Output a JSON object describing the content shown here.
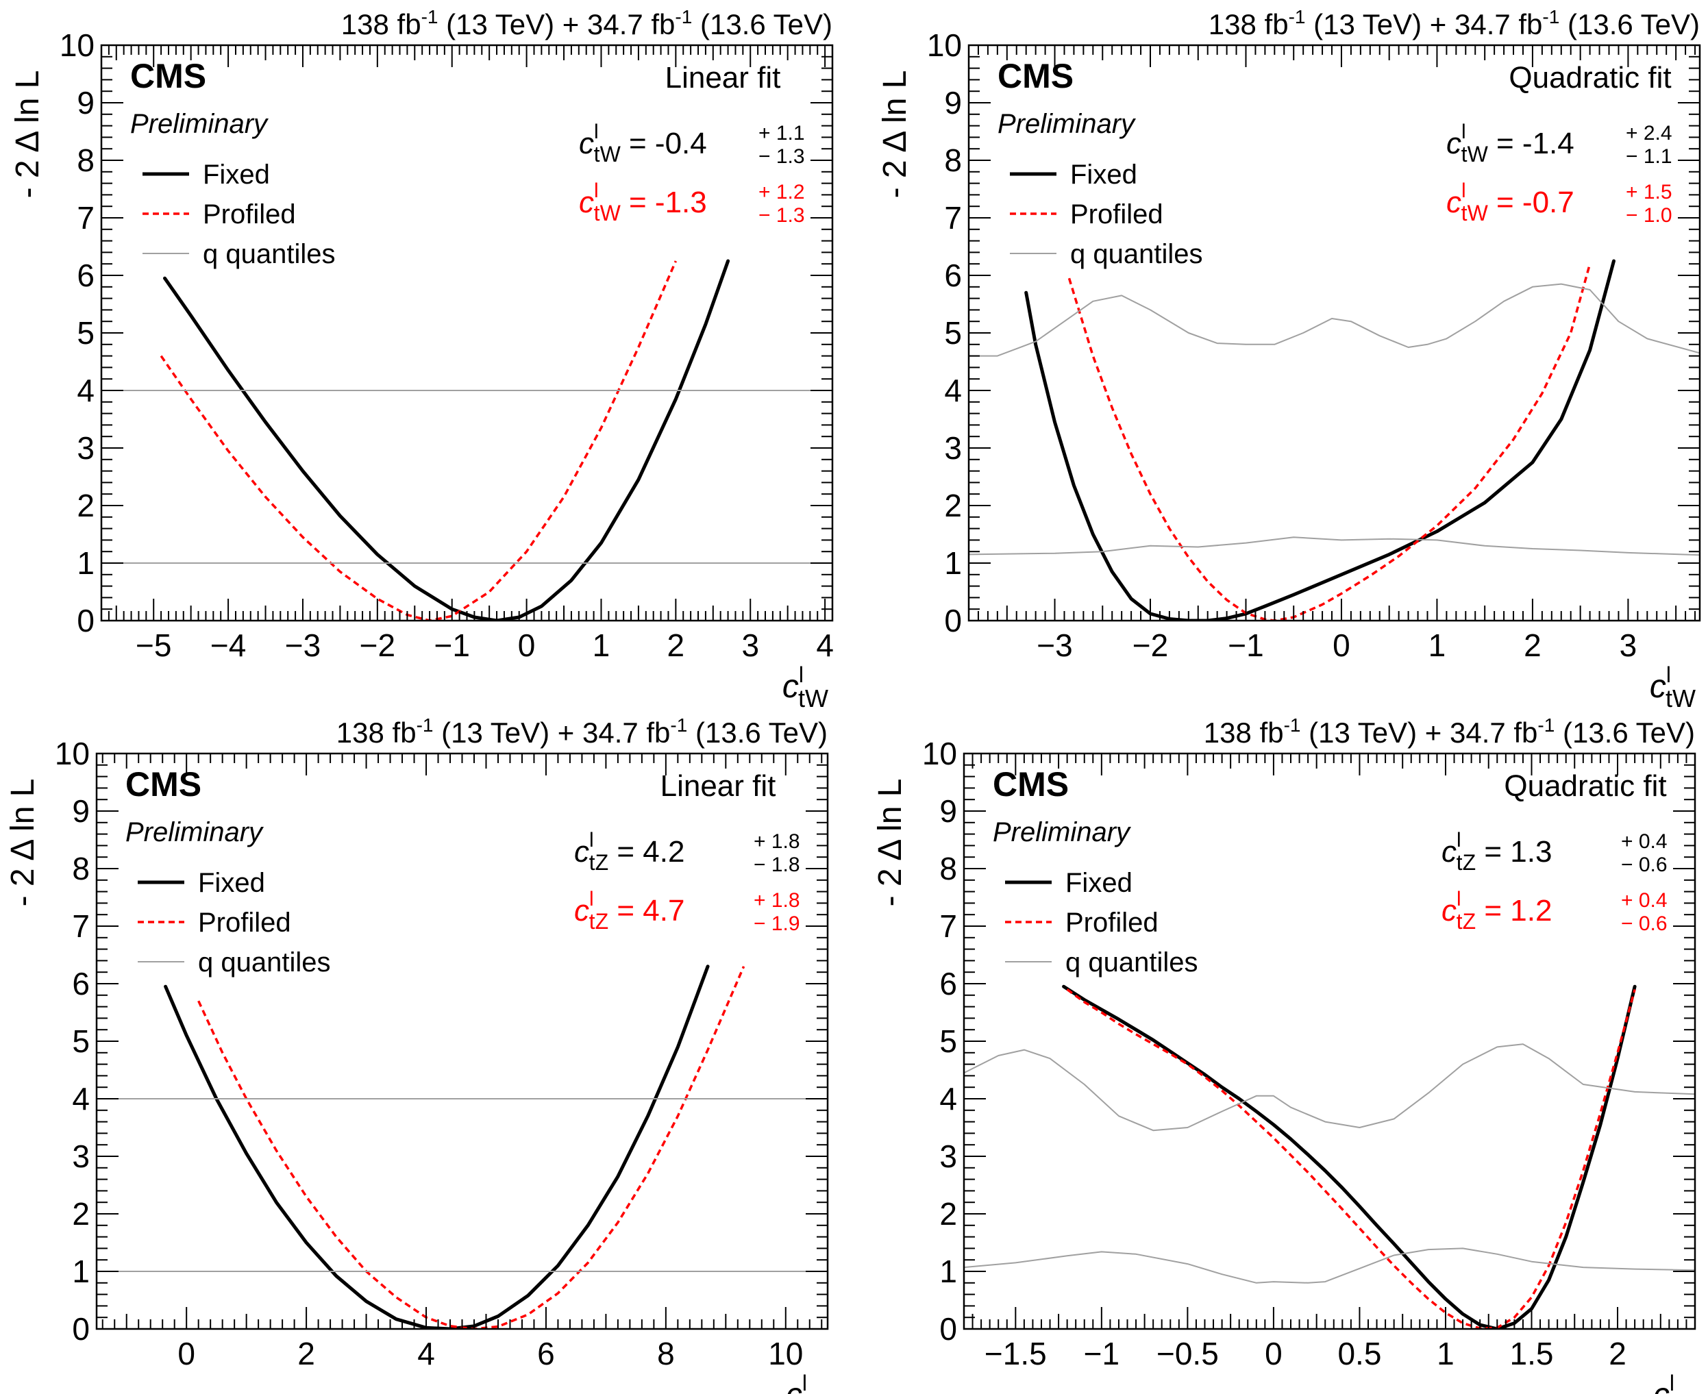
{
  "chart_data": [
    {
      "type": "line",
      "id": "ctw-linear",
      "top_label": {
        "lumi1": "138 fb",
        "exp1": "-1",
        "energy1": " (13 TeV) + 34.7 fb",
        "exp2": "-1",
        "energy2": " (13.6 TeV)"
      },
      "cms": "CMS",
      "preliminary": "Preliminary",
      "fit_title": "Linear fit",
      "ylabel": "- 2 Δ ln L",
      "xlabel": {
        "base": "c",
        "sup": "l",
        "sub": "tW"
      },
      "xlim": [
        -5.7,
        4.1
      ],
      "ylim": [
        0,
        10
      ],
      "xticks": [
        -5,
        -4,
        -3,
        -2,
        -1,
        0,
        1,
        2,
        3,
        4
      ],
      "xtick_labels": [
        "−5",
        "−4",
        "−3",
        "−2",
        "−1",
        "0",
        "1",
        "2",
        "3",
        "4"
      ],
      "yticks": [
        0,
        1,
        2,
        3,
        4,
        5,
        6,
        7,
        8,
        9,
        10
      ],
      "ytick_labels": [
        "0",
        "1",
        "2",
        "3",
        "4",
        "5",
        "6",
        "7",
        "8",
        "9",
        "10"
      ],
      "legend": [
        {
          "label": "Fixed",
          "style": "fixed"
        },
        {
          "label": "Profiled",
          "style": "profiled"
        },
        {
          "label": "q quantiles",
          "style": "quantile"
        }
      ],
      "results": [
        {
          "var": "c",
          "sup": "l",
          "sub": "tW",
          "text": " = -0.4",
          "up": "+ 1.1",
          "down": "− 1.3",
          "color": "#000000"
        },
        {
          "var": "c",
          "sup": "l",
          "sub": "tW",
          "text": " = -1.3",
          "up": "+ 1.2",
          "down": "− 1.3",
          "color": "#ff0000"
        }
      ],
      "series": [
        {
          "name": "Fixed",
          "color": "#000000",
          "x": [
            -4.85,
            -4.5,
            -4.0,
            -3.5,
            -3.0,
            -2.5,
            -2.0,
            -1.5,
            -1.0,
            -0.7,
            -0.4,
            -0.1,
            0.2,
            0.6,
            1.0,
            1.5,
            2.0,
            2.4,
            2.7
          ],
          "y": [
            5.95,
            5.3,
            4.35,
            3.45,
            2.6,
            1.82,
            1.15,
            0.6,
            0.2,
            0.06,
            0.0,
            0.06,
            0.25,
            0.7,
            1.35,
            2.45,
            3.85,
            5.15,
            6.25
          ]
        },
        {
          "name": "Profiled",
          "color": "#ff0000",
          "x": [
            -4.9,
            -4.5,
            -4.0,
            -3.5,
            -3.0,
            -2.5,
            -2.0,
            -1.6,
            -1.3,
            -1.0,
            -0.5,
            0.0,
            0.5,
            1.0,
            1.5,
            2.0
          ],
          "y": [
            4.6,
            3.85,
            2.95,
            2.15,
            1.45,
            0.85,
            0.38,
            0.1,
            0.0,
            0.08,
            0.5,
            1.2,
            2.15,
            3.35,
            4.75,
            6.25
          ]
        },
        {
          "name": "q quantile 1",
          "color": "#a0a0a0",
          "x": [
            -5.7,
            4.1
          ],
          "y": [
            1.0,
            1.0
          ]
        },
        {
          "name": "q quantile 2",
          "color": "#a0a0a0",
          "x": [
            -5.7,
            4.1
          ],
          "y": [
            4.0,
            4.0
          ]
        }
      ]
    },
    {
      "type": "line",
      "id": "ctw-quadratic",
      "top_label": {
        "lumi1": "138 fb",
        "exp1": "-1",
        "energy1": " (13 TeV) + 34.7 fb",
        "exp2": "-1",
        "energy2": " (13.6 TeV)"
      },
      "cms": "CMS",
      "preliminary": "Preliminary",
      "fit_title": "Quadratic fit",
      "ylabel": "- 2 Δ ln L",
      "xlabel": {
        "base": "c",
        "sup": "l",
        "sub": "tW"
      },
      "xlim": [
        -3.9,
        3.75
      ],
      "ylim": [
        0,
        10
      ],
      "xticks": [
        -3,
        -2,
        -1,
        0,
        1,
        2,
        3
      ],
      "xtick_labels": [
        "−3",
        "−2",
        "−1",
        "0",
        "1",
        "2",
        "3"
      ],
      "yticks": [
        0,
        1,
        2,
        3,
        4,
        5,
        6,
        7,
        8,
        9,
        10
      ],
      "ytick_labels": [
        "0",
        "1",
        "2",
        "3",
        "4",
        "5",
        "6",
        "7",
        "8",
        "9",
        "10"
      ],
      "legend": [
        {
          "label": "Fixed",
          "style": "fixed"
        },
        {
          "label": "Profiled",
          "style": "profiled"
        },
        {
          "label": "q quantiles",
          "style": "quantile"
        }
      ],
      "results": [
        {
          "var": "c",
          "sup": "l",
          "sub": "tW",
          "text": " = -1.4",
          "up": "+ 2.4",
          "down": "− 1.1",
          "color": "#000000"
        },
        {
          "var": "c",
          "sup": "l",
          "sub": "tW",
          "text": " = -0.7",
          "up": "+ 1.5",
          "down": "− 1.0",
          "color": "#ff0000"
        }
      ],
      "series": [
        {
          "name": "Fixed",
          "color": "#000000",
          "x": [
            -3.3,
            -3.2,
            -3.0,
            -2.8,
            -2.6,
            -2.4,
            -2.2,
            -2.0,
            -1.8,
            -1.6,
            -1.4,
            -1.2,
            -1.0,
            -0.8,
            -0.5,
            0.0,
            0.5,
            1.0,
            1.5,
            2.0,
            2.3,
            2.6,
            2.85
          ],
          "y": [
            5.7,
            4.8,
            3.45,
            2.35,
            1.5,
            0.85,
            0.38,
            0.12,
            0.03,
            0.0,
            0.0,
            0.04,
            0.12,
            0.25,
            0.45,
            0.8,
            1.15,
            1.55,
            2.05,
            2.75,
            3.5,
            4.7,
            6.25
          ]
        },
        {
          "name": "Profiled",
          "color": "#ff0000",
          "x": [
            -2.85,
            -2.6,
            -2.4,
            -2.2,
            -2.0,
            -1.8,
            -1.6,
            -1.4,
            -1.2,
            -1.0,
            -0.8,
            -0.7,
            -0.5,
            -0.2,
            0.0,
            0.3,
            0.6,
            1.0,
            1.4,
            1.8,
            2.1,
            2.4,
            2.6
          ],
          "y": [
            5.95,
            4.6,
            3.7,
            2.9,
            2.2,
            1.6,
            1.1,
            0.68,
            0.36,
            0.13,
            0.02,
            0.0,
            0.06,
            0.28,
            0.47,
            0.78,
            1.12,
            1.65,
            2.3,
            3.15,
            3.95,
            5.0,
            6.2
          ]
        },
        {
          "name": "q quantile lower",
          "color": "#a0a0a0",
          "x": [
            -3.9,
            -3.0,
            -2.5,
            -2.0,
            -1.5,
            -1.0,
            -0.5,
            0.0,
            0.5,
            1.0,
            1.5,
            2.0,
            2.5,
            3.0,
            3.75
          ],
          "y": [
            1.15,
            1.17,
            1.2,
            1.3,
            1.28,
            1.35,
            1.45,
            1.4,
            1.42,
            1.4,
            1.3,
            1.25,
            1.22,
            1.18,
            1.14
          ]
        },
        {
          "name": "q quantile upper",
          "color": "#a0a0a0",
          "x": [
            -3.9,
            -3.6,
            -3.2,
            -2.9,
            -2.6,
            -2.3,
            -2.0,
            -1.6,
            -1.3,
            -1.0,
            -0.7,
            -0.4,
            -0.1,
            0.1,
            0.4,
            0.7,
            0.9,
            1.1,
            1.4,
            1.7,
            2.0,
            2.3,
            2.6,
            2.9,
            3.2,
            3.75
          ],
          "y": [
            4.6,
            4.6,
            4.85,
            5.2,
            5.55,
            5.65,
            5.4,
            5.0,
            4.82,
            4.8,
            4.8,
            5.0,
            5.25,
            5.2,
            4.95,
            4.75,
            4.8,
            4.9,
            5.2,
            5.55,
            5.8,
            5.85,
            5.75,
            5.2,
            4.9,
            4.65
          ]
        }
      ]
    },
    {
      "type": "line",
      "id": "ctz-linear",
      "top_label": {
        "lumi1": "138 fb",
        "exp1": "-1",
        "energy1": " (13 TeV) + 34.7 fb",
        "exp2": "-1",
        "energy2": " (13.6 TeV)"
      },
      "cms": "CMS",
      "preliminary": "Preliminary",
      "fit_title": "Linear fit",
      "ylabel": "- 2 Δ ln L",
      "xlabel": {
        "base": "c",
        "sup": "l",
        "sub": "tZ"
      },
      "xlim": [
        -1.5,
        10.7
      ],
      "ylim": [
        0,
        10
      ],
      "xticks": [
        0,
        2,
        4,
        6,
        8,
        10
      ],
      "xtick_labels": [
        "0",
        "2",
        "4",
        "6",
        "8",
        "10"
      ],
      "yticks": [
        0,
        1,
        2,
        3,
        4,
        5,
        6,
        7,
        8,
        9,
        10
      ],
      "ytick_labels": [
        "0",
        "1",
        "2",
        "3",
        "4",
        "5",
        "6",
        "7",
        "8",
        "9",
        "10"
      ],
      "legend": [
        {
          "label": "Fixed",
          "style": "fixed"
        },
        {
          "label": "Profiled",
          "style": "profiled"
        },
        {
          "label": "q quantiles",
          "style": "quantile"
        }
      ],
      "results": [
        {
          "var": "c",
          "sup": "l",
          "sub": "tZ",
          "text": " = 4.2",
          "up": "+ 1.8",
          "down": "− 1.8",
          "color": "#000000"
        },
        {
          "var": "c",
          "sup": "l",
          "sub": "tZ",
          "text": " = 4.7",
          "up": "+ 1.8",
          "down": "− 1.9",
          "color": "#ff0000"
        }
      ],
      "series": [
        {
          "name": "Fixed",
          "color": "#000000",
          "x": [
            -0.35,
            0.0,
            0.5,
            1.0,
            1.5,
            2.0,
            2.5,
            3.0,
            3.5,
            4.0,
            4.4,
            4.8,
            5.2,
            5.7,
            6.2,
            6.7,
            7.2,
            7.7,
            8.2,
            8.7
          ],
          "y": [
            5.95,
            5.1,
            4.0,
            3.05,
            2.2,
            1.5,
            0.92,
            0.48,
            0.17,
            0.02,
            0.0,
            0.05,
            0.22,
            0.58,
            1.1,
            1.8,
            2.65,
            3.7,
            4.9,
            6.3
          ]
        },
        {
          "name": "Profiled",
          "color": "#ff0000",
          "x": [
            0.2,
            0.6,
            1.0,
            1.5,
            2.0,
            2.5,
            3.0,
            3.5,
            4.0,
            4.4,
            4.8,
            5.2,
            5.7,
            6.2,
            6.7,
            7.2,
            7.7,
            8.2,
            8.7,
            9.3
          ],
          "y": [
            5.7,
            4.8,
            4.0,
            3.1,
            2.3,
            1.6,
            1.0,
            0.55,
            0.2,
            0.05,
            0.0,
            0.04,
            0.25,
            0.62,
            1.15,
            1.85,
            2.7,
            3.7,
            4.85,
            6.3
          ]
        },
        {
          "name": "q quantile 1",
          "color": "#a0a0a0",
          "x": [
            -1.5,
            10.7
          ],
          "y": [
            1.0,
            1.0
          ]
        },
        {
          "name": "q quantile 2",
          "color": "#a0a0a0",
          "x": [
            -1.5,
            10.7
          ],
          "y": [
            4.0,
            4.0
          ]
        }
      ]
    },
    {
      "type": "line",
      "id": "ctz-quadratic",
      "top_label": {
        "lumi1": "138 fb",
        "exp1": "-1",
        "energy1": " (13 TeV) + 34.7 fb",
        "exp2": "-1",
        "energy2": " (13.6 TeV)"
      },
      "cms": "CMS",
      "preliminary": "Preliminary",
      "fit_title": "Quadratic fit",
      "ylabel": "- 2 Δ ln L",
      "xlabel": {
        "base": "c",
        "sup": "l",
        "sub": "tZ"
      },
      "xlim": [
        -1.8,
        2.45
      ],
      "ylim": [
        0,
        10
      ],
      "xticks": [
        -1.5,
        -1,
        -0.5,
        0,
        0.5,
        1,
        1.5,
        2
      ],
      "xtick_labels": [
        "−1.5",
        "−1",
        "−0.5",
        "0",
        "0.5",
        "1",
        "1.5",
        "2"
      ],
      "yticks": [
        0,
        1,
        2,
        3,
        4,
        5,
        6,
        7,
        8,
        9,
        10
      ],
      "ytick_labels": [
        "0",
        "1",
        "2",
        "3",
        "4",
        "5",
        "6",
        "7",
        "8",
        "9",
        "10"
      ],
      "legend": [
        {
          "label": "Fixed",
          "style": "fixed"
        },
        {
          "label": "Profiled",
          "style": "profiled"
        },
        {
          "label": "q quantiles",
          "style": "quantile"
        }
      ],
      "results": [
        {
          "var": "c",
          "sup": "l",
          "sub": "tZ",
          "text": " = 1.3",
          "up": "+ 0.4",
          "down": "− 0.6",
          "color": "#000000"
        },
        {
          "var": "c",
          "sup": "l",
          "sub": "tZ",
          "text": " = 1.2",
          "up": "+ 0.4",
          "down": "− 0.6",
          "color": "#ff0000"
        }
      ],
      "series": [
        {
          "name": "Fixed",
          "color": "#000000",
          "x": [
            -1.22,
            -1.1,
            -1.0,
            -0.9,
            -0.8,
            -0.7,
            -0.6,
            -0.5,
            -0.4,
            -0.3,
            -0.2,
            -0.1,
            0.0,
            0.1,
            0.2,
            0.3,
            0.4,
            0.5,
            0.6,
            0.7,
            0.8,
            0.9,
            1.0,
            1.1,
            1.2,
            1.3,
            1.4,
            1.5,
            1.6,
            1.7,
            1.8,
            1.9,
            2.0,
            2.1
          ],
          "y": [
            5.95,
            5.72,
            5.55,
            5.38,
            5.2,
            5.02,
            4.82,
            4.62,
            4.42,
            4.2,
            4.0,
            3.78,
            3.55,
            3.3,
            3.03,
            2.75,
            2.45,
            2.13,
            1.8,
            1.48,
            1.15,
            0.82,
            0.52,
            0.26,
            0.07,
            0.0,
            0.1,
            0.35,
            0.85,
            1.6,
            2.55,
            3.55,
            4.7,
            5.95
          ]
        },
        {
          "name": "Profiled",
          "color": "#ff0000",
          "x": [
            -1.2,
            -1.1,
            -1.0,
            -0.9,
            -0.8,
            -0.7,
            -0.6,
            -0.5,
            -0.4,
            -0.3,
            -0.2,
            -0.1,
            0.0,
            0.1,
            0.2,
            0.3,
            0.4,
            0.5,
            0.6,
            0.7,
            0.8,
            0.9,
            1.0,
            1.1,
            1.2,
            1.3,
            1.4,
            1.5,
            1.6,
            1.7,
            1.8,
            1.9,
            2.0,
            2.1
          ],
          "y": [
            5.9,
            5.68,
            5.5,
            5.3,
            5.12,
            4.95,
            4.78,
            4.6,
            4.38,
            4.14,
            3.88,
            3.6,
            3.32,
            3.02,
            2.72,
            2.4,
            2.08,
            1.75,
            1.42,
            1.1,
            0.8,
            0.52,
            0.28,
            0.1,
            0.01,
            0.02,
            0.2,
            0.55,
            1.1,
            1.85,
            2.75,
            3.75,
            4.8,
            5.9
          ]
        },
        {
          "name": "q quantile lower",
          "color": "#a0a0a0",
          "x": [
            -1.8,
            -1.5,
            -1.2,
            -1.0,
            -0.8,
            -0.5,
            -0.3,
            -0.1,
            0.0,
            0.2,
            0.3,
            0.5,
            0.7,
            0.9,
            1.1,
            1.3,
            1.5,
            1.8,
            2.1,
            2.45
          ],
          "y": [
            1.07,
            1.15,
            1.27,
            1.34,
            1.3,
            1.13,
            0.95,
            0.8,
            0.82,
            0.8,
            0.82,
            1.05,
            1.28,
            1.38,
            1.4,
            1.3,
            1.17,
            1.07,
            1.04,
            1.02
          ]
        },
        {
          "name": "q quantile upper",
          "color": "#a0a0a0",
          "x": [
            -1.8,
            -1.6,
            -1.45,
            -1.3,
            -1.1,
            -0.9,
            -0.7,
            -0.5,
            -0.3,
            -0.1,
            0.0,
            0.1,
            0.3,
            0.5,
            0.7,
            0.9,
            1.1,
            1.3,
            1.45,
            1.6,
            1.8,
            2.1,
            2.45
          ],
          "y": [
            4.45,
            4.75,
            4.85,
            4.7,
            4.25,
            3.7,
            3.45,
            3.5,
            3.78,
            4.05,
            4.05,
            3.85,
            3.6,
            3.5,
            3.65,
            4.1,
            4.6,
            4.9,
            4.95,
            4.7,
            4.25,
            4.12,
            4.08
          ]
        }
      ]
    }
  ]
}
